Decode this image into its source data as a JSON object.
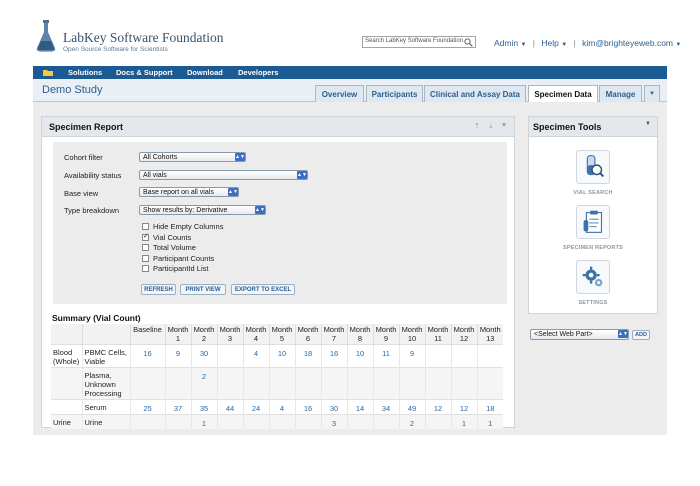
{
  "header": {
    "org_name": "LabKey Software Foundation",
    "org_tagline": "Open Source Software for Scientists",
    "search_placeholder": "Search LabKey Software Foundation",
    "admin": "Admin",
    "help": "Help",
    "user_email": "kim@brighteyeweb.com"
  },
  "menu": [
    "Solutions",
    "Docs & Support",
    "Download",
    "Developers"
  ],
  "study_title": "Demo Study",
  "tabs": [
    {
      "label": "Overview",
      "active": false
    },
    {
      "label": "Participants",
      "active": false
    },
    {
      "label": "Clinical and Assay Data",
      "active": false
    },
    {
      "label": "Specimen Data",
      "active": true
    },
    {
      "label": "Manage",
      "active": false
    }
  ],
  "report": {
    "title": "Specimen Report",
    "filters": {
      "cohort_label": "Cohort filter",
      "cohort_value": "All Cohorts",
      "availability_label": "Availability status",
      "availability_value": "All vials",
      "base_view_label": "Base view",
      "base_view_value": "Base report on all vials",
      "type_label": "Type breakdown",
      "type_value": "Show results by: Derivative"
    },
    "options": [
      {
        "label": "Hide Empty Columns",
        "checked": false
      },
      {
        "label": "Vial Counts",
        "checked": true
      },
      {
        "label": "Total Volume",
        "checked": false
      },
      {
        "label": "Participant Counts",
        "checked": false
      },
      {
        "label": "ParticipantId List",
        "checked": false
      }
    ],
    "buttons": {
      "refresh": "REFRESH",
      "print": "PRINT VIEW",
      "export": "EXPORT TO EXCEL"
    },
    "summary_title": "Summary (Vial Count)",
    "columns": [
      {
        "top": "Baseline",
        "bottom": ""
      },
      {
        "top": "Month",
        "bottom": "1"
      },
      {
        "top": "Month",
        "bottom": "2"
      },
      {
        "top": "Month",
        "bottom": "3"
      },
      {
        "top": "Month",
        "bottom": "4"
      },
      {
        "top": "Month",
        "bottom": "5"
      },
      {
        "top": "Month",
        "bottom": "6"
      },
      {
        "top": "Month",
        "bottom": "7"
      },
      {
        "top": "Month",
        "bottom": "8"
      },
      {
        "top": "Month",
        "bottom": "9"
      },
      {
        "top": "Month",
        "bottom": "10"
      },
      {
        "top": "Month",
        "bottom": "11"
      },
      {
        "top": "Month",
        "bottom": "12"
      },
      {
        "top": "Month",
        "bottom": "13"
      }
    ],
    "rows": [
      {
        "type": "Blood (Whole)",
        "derivative": "PBMC Cells, Viable",
        "values": [
          "16",
          "9",
          "30",
          "",
          "4",
          "10",
          "18",
          "16",
          "10",
          "11",
          "9",
          "",
          "",
          ""
        ]
      },
      {
        "type": "",
        "derivative": "Plasma, Unknown Processing",
        "values": [
          "",
          "",
          "2",
          "",
          "",
          "",
          "",
          "",
          "",
          "",
          "",
          "",
          "",
          ""
        ]
      },
      {
        "type": "",
        "derivative": "Serum",
        "values": [
          "25",
          "37",
          "35",
          "44",
          "24",
          "4",
          "16",
          "30",
          "14",
          "34",
          "49",
          "12",
          "12",
          "18"
        ]
      },
      {
        "type": "Urine",
        "derivative": "Urine",
        "values": [
          "",
          "",
          "1",
          "",
          "",
          "",
          "",
          "3",
          "",
          "",
          "2",
          "",
          "1",
          "1"
        ]
      }
    ]
  },
  "tools": {
    "title": "Specimen Tools",
    "items": [
      {
        "label": "VIAL SEARCH",
        "icon": "vial-search-icon"
      },
      {
        "label": "SPECIMEN REPORTS",
        "icon": "specimen-reports-icon"
      },
      {
        "label": "SETTINGS",
        "icon": "settings-icon"
      }
    ]
  },
  "webpart": {
    "select_value": "<Select Web Part>",
    "add_label": "ADD"
  }
}
